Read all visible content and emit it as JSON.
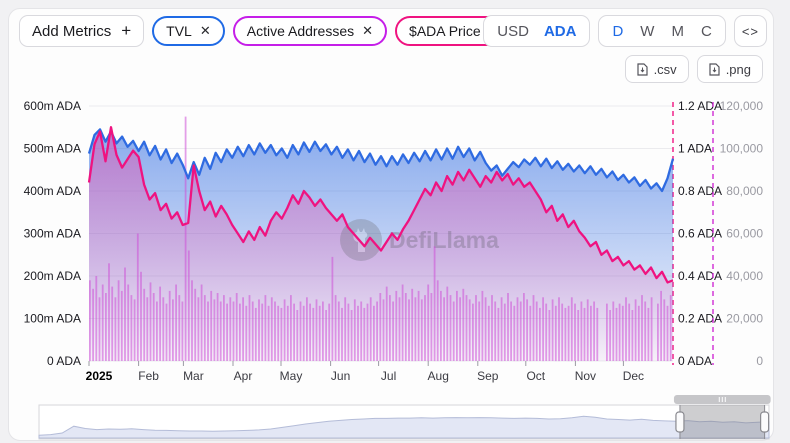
{
  "toolbar": {
    "add_metrics_label": "Add Metrics",
    "add_metrics_icon": "+",
    "pills": [
      {
        "label": "TVL",
        "color": "#1f6ae5"
      },
      {
        "label": "Active Addresses",
        "color": "#c51ee8"
      },
      {
        "label": "$ADA Price",
        "color": "#ef1380"
      }
    ],
    "currency_options": [
      "USD",
      "ADA"
    ],
    "currency_active": "ADA",
    "interval_options": [
      "D",
      "W",
      "M",
      "C"
    ],
    "interval_active": "D"
  },
  "icons": {
    "close": "✕",
    "embed": "<>"
  },
  "downloads": {
    "csv": ".csv",
    "png": ".png"
  },
  "watermark": "DefiLlama",
  "colors": {
    "tvl_blue": "#2f6be1",
    "price_pink": "#ef1380",
    "addresses_magenta": "#cf2bd4",
    "bars_fill": "rgba(205,80,215,0.55)",
    "grid": "#ebebee",
    "axis_text": "#1a1a20",
    "addr_axis_text": "#9a9aa2"
  },
  "chart_data": {
    "type": [
      "area",
      "line",
      "bar"
    ],
    "title": "",
    "months": [
      "2025",
      "Feb",
      "Mar",
      "Apr",
      "May",
      "Jun",
      "Jul",
      "Aug",
      "Sep",
      "Oct",
      "Nov",
      "Dec"
    ],
    "month_start_days": [
      0,
      31,
      59,
      90,
      120,
      151,
      181,
      212,
      243,
      273,
      304,
      334
    ],
    "axes": {
      "left": {
        "unit": "m ADA",
        "max": 600,
        "ticks": [
          "600m ADA",
          "500m ADA",
          "400m ADA",
          "300m ADA",
          "200m ADA",
          "100m ADA",
          "0 ADA"
        ]
      },
      "price": {
        "unit": "ADA",
        "max": 1.2,
        "ticks": [
          "1.2 ADA",
          "1 ADA",
          "0.8 ADA",
          "0.6 ADA",
          "0.4 ADA",
          "0.2 ADA",
          "0 ADA"
        ]
      },
      "addresses": {
        "unit": "",
        "max": 120000,
        "ticks": [
          "120,000",
          "100,000",
          "80,000",
          "60,000",
          "40,000",
          "20,000",
          "0"
        ]
      }
    },
    "series": [
      {
        "name": "TVL",
        "type": "area",
        "yaxis": "left",
        "color": "#2f6be1",
        "unit": "m ADA",
        "values": [
          488,
          532,
          545,
          516,
          540,
          512,
          528,
          504,
          518,
          494,
          516,
          484,
          506,
          474,
          498,
          466,
          488,
          462,
          430,
          468,
          438,
          478,
          452,
          490,
          468,
          498,
          478,
          504,
          482,
          508,
          486,
          512,
          490,
          508,
          484,
          500,
          478,
          508,
          486,
          514,
          492,
          516,
          494,
          510,
          486,
          504,
          478,
          498,
          472,
          494,
          468,
          488,
          462,
          482,
          458,
          482,
          462,
          486,
          466,
          490,
          470,
          494,
          472,
          498,
          474,
          500,
          476,
          504,
          480,
          500,
          472,
          492,
          466,
          448,
          460,
          436,
          452,
          468,
          456,
          474,
          462,
          478,
          458,
          476,
          454,
          470,
          450,
          464,
          446,
          460,
          442,
          458,
          438,
          452,
          432,
          446,
          426,
          438,
          420,
          432,
          412,
          426,
          406,
          418,
          400,
          430,
          476
        ]
      },
      {
        "name": "$ADA Price",
        "type": "line",
        "yaxis": "price",
        "color": "#ef1380",
        "unit": "ADA",
        "values": [
          0.84,
          1.02,
          1.08,
          0.94,
          1.1,
          0.97,
          0.91,
          0.95,
          0.99,
          0.96,
          0.83,
          0.76,
          0.79,
          0.71,
          0.74,
          0.67,
          0.7,
          0.64,
          0.65,
          0.92,
          0.8,
          0.71,
          0.75,
          0.68,
          0.73,
          0.69,
          0.64,
          0.6,
          0.56,
          0.61,
          0.57,
          0.63,
          0.59,
          0.66,
          0.7,
          0.67,
          0.72,
          0.78,
          0.74,
          0.8,
          0.77,
          0.73,
          0.76,
          0.72,
          0.69,
          0.66,
          0.69,
          0.63,
          0.6,
          0.57,
          0.54,
          0.58,
          0.55,
          0.52,
          0.56,
          0.6,
          0.57,
          0.62,
          0.66,
          0.71,
          0.76,
          0.81,
          0.78,
          0.84,
          0.8,
          0.87,
          0.83,
          0.89,
          0.85,
          0.9,
          0.86,
          0.82,
          0.87,
          0.84,
          0.89,
          0.85,
          0.88,
          0.83,
          0.86,
          0.82,
          0.84,
          0.8,
          0.76,
          0.7,
          0.73,
          0.66,
          0.69,
          0.63,
          0.66,
          0.61,
          0.58,
          0.54,
          0.56,
          0.5,
          0.52,
          0.47,
          0.49,
          0.45,
          0.47,
          0.43,
          0.45,
          0.41,
          0.44,
          0.39,
          0.42,
          0.37,
          0.38
        ]
      },
      {
        "name": "Active Addresses",
        "type": "bar",
        "yaxis": "addresses",
        "color": "#cf2bd4",
        "values": [
          38000,
          34000,
          40000,
          30000,
          36000,
          32000,
          46000,
          35000,
          30000,
          38000,
          33000,
          44000,
          36000,
          31000,
          29000,
          60000,
          42000,
          34000,
          30000,
          37000,
          32000,
          28000,
          35000,
          30000,
          27000,
          33000,
          29000,
          36000,
          31000,
          28000,
          115000,
          52000,
          38000,
          34000,
          30000,
          36000,
          31000,
          28000,
          33000,
          29000,
          32000,
          28000,
          31000,
          27000,
          30000,
          28000,
          32000,
          27000,
          30000,
          26000,
          31000,
          28000,
          25000,
          29000,
          27000,
          31000,
          26000,
          30000,
          28000,
          26000,
          25000,
          29000,
          26000,
          31000,
          27000,
          24000,
          28000,
          26000,
          30000,
          27000,
          25000,
          29000,
          26000,
          28000,
          24000,
          27000,
          49000,
          31000,
          28000,
          25000,
          30000,
          27000,
          24000,
          29000,
          26000,
          28000,
          25000,
          27000,
          30000,
          26000,
          28000,
          32000,
          29000,
          35000,
          31000,
          28000,
          33000,
          30000,
          36000,
          32000,
          29000,
          34000,
          30000,
          33000,
          29000,
          31000,
          36000,
          32000,
          54000,
          38000,
          33000,
          30000,
          35000,
          31000,
          28000,
          33000,
          30000,
          34000,
          31000,
          29000,
          27000,
          31000,
          28000,
          33000,
          30000,
          26000,
          31000,
          28000,
          25000,
          30000,
          27000,
          32000,
          28000,
          26000,
          30000,
          28000,
          32000,
          29000,
          26000,
          31000,
          28000,
          25000,
          30000,
          27000,
          24000,
          29000,
          26000,
          30000,
          27000,
          25000,
          26000,
          30000,
          27000,
          24000,
          28000,
          25000,
          29000,
          26000,
          28000,
          25000,
          null,
          null,
          27000,
          24000,
          28000,
          25000,
          27000,
          26000,
          30000,
          27000,
          24000,
          29000,
          26000,
          31000,
          28000,
          25000,
          30000,
          null,
          27000,
          33000,
          29000,
          26000,
          31000
        ]
      }
    ],
    "brush": {
      "values": [
        0.1,
        0.12,
        0.18,
        0.42,
        0.34,
        0.3,
        0.32,
        0.31,
        0.33,
        0.3,
        0.28,
        0.27,
        0.26,
        0.25,
        0.25,
        0.24,
        0.25,
        0.26,
        0.27,
        0.29,
        0.32,
        0.38,
        0.44,
        0.5,
        0.55,
        0.6,
        0.63,
        0.66,
        0.68,
        0.7,
        0.7,
        0.71,
        0.71,
        0.72,
        0.71,
        0.72,
        0.73,
        0.72,
        0.73,
        0.72,
        0.71,
        0.7,
        0.71,
        0.7,
        0.68,
        0.69,
        0.72,
        0.78,
        0.74,
        0.68,
        0.66,
        0.64,
        0.67,
        0.63,
        0.61,
        0.6,
        0.62,
        0.58,
        0.6,
        0.56,
        0.58,
        0.54,
        0.56,
        0.58
      ],
      "selection_start_frac": 0.878,
      "selection_end_frac": 0.994
    },
    "legend_position": "none",
    "grid": true
  }
}
